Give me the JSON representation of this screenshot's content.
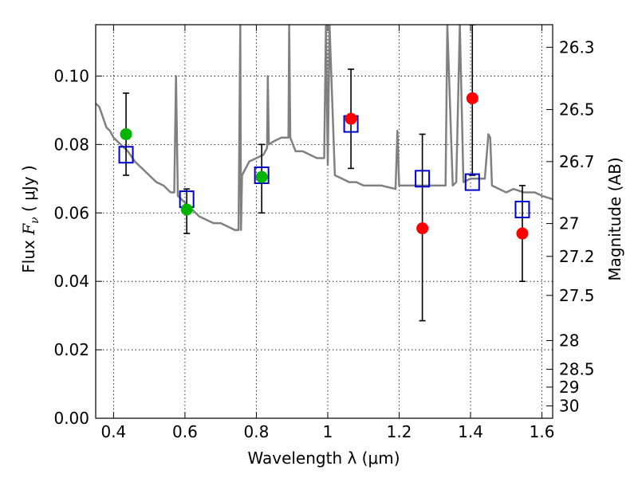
{
  "chart_data": {
    "type": "scatter",
    "xlabel": "Wavelength  λ (μm)",
    "ylabel_prefix": "Flux  ",
    "ylabel_math": "F",
    "ylabel_sub": "ν",
    "ylabel_suffix": "  ( μJy )",
    "ylabel_right": "Magnitude (AB)",
    "xlim": [
      0.35,
      1.63
    ],
    "ylim": [
      0.0,
      0.115
    ],
    "x_ticks": [
      {
        "value": 0.4,
        "label": "0.4"
      },
      {
        "value": 0.6,
        "label": "0.6"
      },
      {
        "value": 0.8,
        "label": "0.8"
      },
      {
        "value": 1.0,
        "label": "1"
      },
      {
        "value": 1.2,
        "label": "1.2"
      },
      {
        "value": 1.4,
        "label": "1.4"
      },
      {
        "value": 1.6,
        "label": "1.6"
      }
    ],
    "y_ticks": [
      {
        "value": 0.0,
        "label": "0.00"
      },
      {
        "value": 0.02,
        "label": "0.02"
      },
      {
        "value": 0.04,
        "label": "0.04"
      },
      {
        "value": 0.06,
        "label": "0.06"
      },
      {
        "value": 0.08,
        "label": "0.08"
      },
      {
        "value": 0.1,
        "label": "0.10"
      }
    ],
    "mag_ticks": [
      {
        "label": "26.3",
        "flux": 0.1084
      },
      {
        "label": "26.5",
        "flux": 0.0902
      },
      {
        "label": "26.7",
        "flux": 0.075
      },
      {
        "label": "27",
        "flux": 0.0569
      },
      {
        "label": "27.2",
        "flux": 0.0473
      },
      {
        "label": "27.5",
        "flux": 0.0359
      },
      {
        "label": "28",
        "flux": 0.0227
      },
      {
        "label": "28.5",
        "flux": 0.0143
      },
      {
        "label": "29",
        "flux": 0.0091
      },
      {
        "label": "30",
        "flux": 0.0036
      }
    ],
    "grid": true,
    "colors": {
      "spectrum": "#808080",
      "model_box": "#0000cc",
      "detected": "#00b400",
      "upper": "#ff0000",
      "errorbar": "#000000"
    },
    "spectrum": {
      "x": [
        0.35,
        0.36,
        0.37,
        0.38,
        0.39,
        0.4,
        0.42,
        0.44,
        0.46,
        0.48,
        0.5,
        0.52,
        0.54,
        0.56,
        0.57,
        0.575,
        0.58,
        0.6,
        0.62,
        0.64,
        0.66,
        0.68,
        0.7,
        0.72,
        0.74,
        0.75,
        0.755,
        0.757,
        0.76,
        0.78,
        0.8,
        0.82,
        0.83,
        0.832,
        0.835,
        0.85,
        0.87,
        0.89,
        0.892,
        0.895,
        0.91,
        0.93,
        0.95,
        0.97,
        0.99,
        0.995,
        1.0,
        1.005,
        1.02,
        1.04,
        1.06,
        1.08,
        1.1,
        1.12,
        1.15,
        1.19,
        1.195,
        1.2,
        1.22,
        1.25,
        1.28,
        1.3,
        1.33,
        1.335,
        1.35,
        1.36,
        1.37,
        1.38,
        1.4,
        1.42,
        1.44,
        1.45,
        1.455,
        1.46,
        1.48,
        1.5,
        1.52,
        1.55,
        1.58,
        1.6,
        1.63
      ],
      "y": [
        0.092,
        0.091,
        0.088,
        0.085,
        0.084,
        0.082,
        0.08,
        0.078,
        0.075,
        0.073,
        0.071,
        0.069,
        0.068,
        0.066,
        0.066,
        0.1,
        0.065,
        0.063,
        0.061,
        0.059,
        0.058,
        0.057,
        0.057,
        0.056,
        0.055,
        0.055,
        0.115,
        0.055,
        0.071,
        0.075,
        0.076,
        0.077,
        0.079,
        0.1,
        0.08,
        0.081,
        0.082,
        0.082,
        0.115,
        0.082,
        0.078,
        0.078,
        0.077,
        0.076,
        0.076,
        0.115,
        0.074,
        0.115,
        0.071,
        0.07,
        0.069,
        0.069,
        0.068,
        0.068,
        0.068,
        0.067,
        0.084,
        0.068,
        0.068,
        0.068,
        0.068,
        0.068,
        0.068,
        0.115,
        0.068,
        0.069,
        0.115,
        0.069,
        0.07,
        0.07,
        0.07,
        0.083,
        0.082,
        0.068,
        0.067,
        0.066,
        0.067,
        0.066,
        0.066,
        0.065,
        0.064
      ]
    },
    "series": [
      {
        "marker": "square",
        "color": "#0000cc",
        "x": [
          0.435,
          0.605,
          0.815,
          1.065,
          1.265,
          1.405,
          1.545
        ],
        "y": [
          0.077,
          0.064,
          0.071,
          0.086,
          0.07,
          0.069,
          0.061
        ]
      },
      {
        "marker": "circle",
        "color": "#00b400",
        "x": [
          0.435,
          0.605,
          0.815
        ],
        "y": [
          0.083,
          0.061,
          0.0705
        ],
        "yerr_low": [
          0.071,
          0.054,
          0.06
        ],
        "yerr_high": [
          0.095,
          0.067,
          0.08
        ]
      },
      {
        "marker": "circle",
        "color": "#ff0000",
        "x": [
          1.065,
          1.265,
          1.405,
          1.545
        ],
        "y": [
          0.0875,
          0.0555,
          0.0935,
          0.054
        ],
        "yerr_low": [
          0.073,
          0.0285,
          0.071,
          0.04
        ],
        "yerr_high": [
          0.102,
          0.083,
          0.115,
          0.068
        ]
      }
    ]
  }
}
